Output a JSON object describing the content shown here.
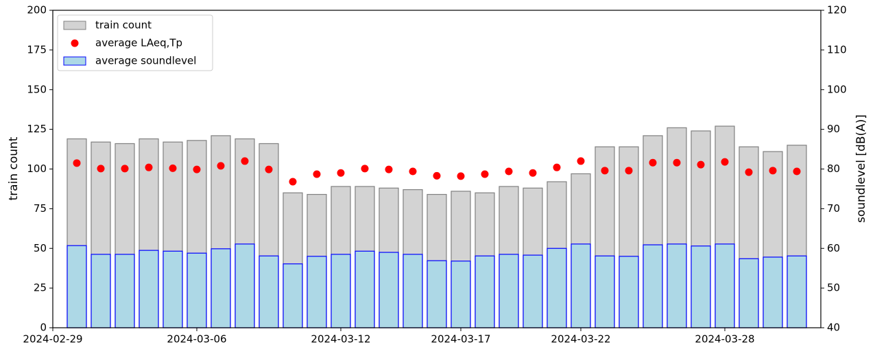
{
  "chart_data": {
    "type": "bar",
    "x": [
      "2024-03-01",
      "2024-03-02",
      "2024-03-03",
      "2024-03-04",
      "2024-03-05",
      "2024-03-06",
      "2024-03-07",
      "2024-03-08",
      "2024-03-09",
      "2024-03-10",
      "2024-03-11",
      "2024-03-12",
      "2024-03-13",
      "2024-03-14",
      "2024-03-15",
      "2024-03-16",
      "2024-03-17",
      "2024-03-18",
      "2024-03-19",
      "2024-03-20",
      "2024-03-21",
      "2024-03-22",
      "2024-03-23",
      "2024-03-24",
      "2024-03-25",
      "2024-03-26",
      "2024-03-27",
      "2024-03-28",
      "2024-03-29",
      "2024-03-30",
      "2024-03-31"
    ],
    "xlim": [
      "2024-02-29",
      "2024-04-01"
    ],
    "xticks": [
      "2024-02-29",
      "2024-03-06",
      "2024-03-12",
      "2024-03-17",
      "2024-03-22",
      "2024-03-28"
    ],
    "ylabel": "train count",
    "y2label": "soundlevel [dB(A)]",
    "ylim": [
      0,
      200
    ],
    "yticks": [
      0,
      25,
      50,
      75,
      100,
      125,
      150,
      175,
      200
    ],
    "y2lim": [
      40,
      120
    ],
    "y2ticks": [
      40,
      50,
      60,
      70,
      80,
      90,
      100,
      110,
      120
    ],
    "legend": "upper left",
    "series": [
      {
        "name": "train count",
        "type": "bar",
        "color": "#d3d3d3",
        "edgecolor": "#808080",
        "values": [
          119,
          117,
          116,
          119,
          117,
          118,
          121,
          119,
          116,
          85,
          84,
          89,
          89,
          88,
          87,
          84,
          86,
          85,
          89,
          88,
          92,
          97,
          114,
          114,
          121,
          126,
          124,
          127,
          114,
          111,
          115
        ]
      },
      {
        "name": "average LAeq,Tp",
        "type": "scatter",
        "axis": "y2",
        "color": "#ff0000",
        "values": [
          81.5,
          80.1,
          80.1,
          80.4,
          80.2,
          79.9,
          80.8,
          82.0,
          79.9,
          76.8,
          78.7,
          79.0,
          80.1,
          79.9,
          79.4,
          78.3,
          78.2,
          78.7,
          79.4,
          79.0,
          80.4,
          82.0,
          79.6,
          79.6,
          81.6,
          81.6,
          81.1,
          81.8,
          79.2,
          79.6,
          79.4
        ]
      },
      {
        "name": "average soundlevel",
        "type": "bar",
        "axis": "y2",
        "color": "#add8e6",
        "edgecolor": "#0000ff",
        "values": [
          60.7,
          58.5,
          58.5,
          59.5,
          59.3,
          58.8,
          59.9,
          61.1,
          58.1,
          56.1,
          58.0,
          58.5,
          59.3,
          59.0,
          58.5,
          56.9,
          56.8,
          58.1,
          58.5,
          58.3,
          60.0,
          61.1,
          58.1,
          58.0,
          60.9,
          61.1,
          60.6,
          61.1,
          57.4,
          57.8,
          58.1
        ]
      }
    ]
  }
}
